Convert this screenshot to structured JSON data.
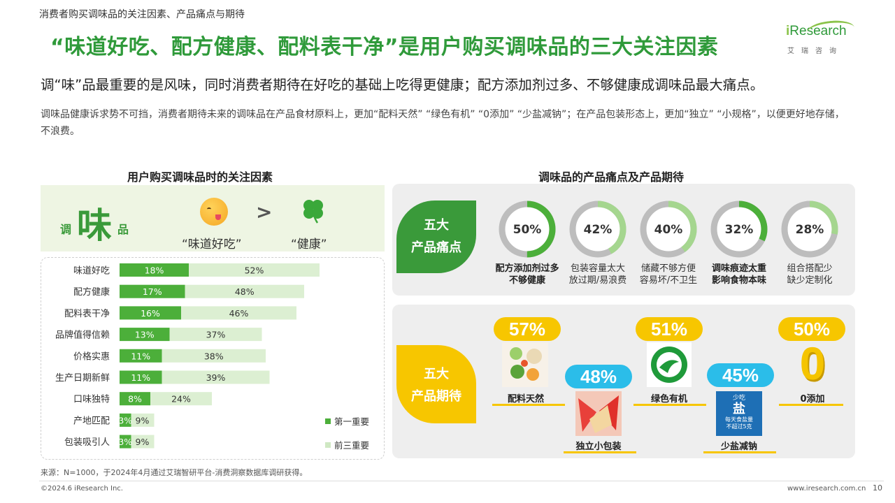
{
  "breadcrumb": "消费者购买调味品的关注因素、产品痛点与期待",
  "title": "“味道好吃、配方健康、配料表干净”是用户购买调味品的三大关注因素",
  "logo": {
    "brand_i": "i",
    "brand_rest": "Research",
    "sub": "艾瑞咨询"
  },
  "subtitle": "调“味”品最重要的是风味，同时消费者期待在好吃的基础上吃得更健康；配方添加剂过多、不够健康成调味品最大痛点。",
  "description": "调味品健康诉求势不可挡，消费者期待未来的调味品在产品食材原料上，更加“配料天然” “绿色有机” “0添加” “少盐减钠”；在产品包装形态上，更加“独立” “小规格”，以便更好地存储，不浪费。",
  "left_section_title": "用户购买调味品时的关注因素",
  "right_section_title": "调味品的产品痛点及产品期待",
  "hero": {
    "diao": "调",
    "wei": "味",
    "pin": "品",
    "gt": ">",
    "label_taste": "“味道好吃”",
    "label_health": "“健康”"
  },
  "chart_data": {
    "type": "bar",
    "categories": [
      "味道好吃",
      "配方健康",
      "配料表干净",
      "品牌值得信赖",
      "价格实惠",
      "生产日期新鲜",
      "口味独特",
      "产地匹配",
      "包装吸引人"
    ],
    "series": [
      {
        "name": "第一重要",
        "values": [
          18,
          17,
          16,
          13,
          11,
          11,
          8,
          3,
          3
        ],
        "labels": [
          "18%",
          "17%",
          "16%",
          "13%",
          "11%",
          "11%",
          "8%",
          "3%",
          "3%"
        ],
        "color": "#4caf3a"
      },
      {
        "name": "前三重要",
        "values": [
          52,
          48,
          46,
          37,
          38,
          39,
          24,
          9,
          9
        ],
        "labels": [
          "52%",
          "48%",
          "46%",
          "37%",
          "38%",
          "39%",
          "24%",
          "9%",
          "9%"
        ],
        "color": "#dcefd2"
      }
    ],
    "legend_position": "bottom-right"
  },
  "pain_points": {
    "tag": [
      "五大",
      "产品痛点"
    ],
    "items": [
      {
        "value": 50,
        "label_pct": "50%",
        "lines": [
          "配方添加剂过多",
          "不够健康"
        ],
        "bold": true
      },
      {
        "value": 42,
        "label_pct": "42%",
        "lines": [
          "包装容量太大",
          "放过期/易浪费"
        ],
        "bold": false
      },
      {
        "value": 40,
        "label_pct": "40%",
        "lines": [
          "储藏不够方便",
          "容易坏/不卫生"
        ],
        "bold": false
      },
      {
        "value": 32,
        "label_pct": "32%",
        "lines": [
          "调味痕迹太重",
          "影响食物本味"
        ],
        "bold": true
      },
      {
        "value": 28,
        "label_pct": "28%",
        "lines": [
          "组合搭配少",
          "缺少定制化"
        ],
        "bold": false
      }
    ],
    "colors": {
      "ring_bg": "#bdbdbd",
      "ring_bold": "#4caf3a",
      "ring_light": "#a5d68f"
    }
  },
  "expectations": {
    "tag": [
      "五大",
      "产品期待"
    ],
    "items": [
      {
        "pct": "57%",
        "label": "配料天然"
      },
      {
        "pct": "48%",
        "label": "独立小包装"
      },
      {
        "pct": "51%",
        "label": "绿色有机"
      },
      {
        "pct": "45%",
        "label": "少盐减钠"
      },
      {
        "pct": "50%",
        "label": "0添加"
      }
    ],
    "zero_glyph": "0",
    "salt_text": {
      "small": "少吃",
      "big": "盐",
      "line1": "每天食盐量",
      "line2": "不超过5克"
    }
  },
  "source": "来源：N=1000，于2024年4月通过艾瑞智研平台-消费洞察数据库调研获得。",
  "copyright": "©2024.6 iResearch Inc.",
  "website": "www.iresearch.com.cn",
  "page_number": "10"
}
